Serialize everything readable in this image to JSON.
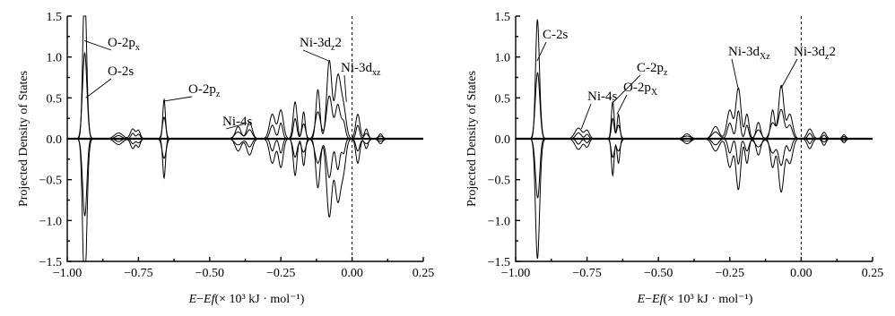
{
  "chart_data": [
    {
      "type": "line",
      "panel": "left",
      "xlabel_prefix": "E−Ef(",
      "xlabel_unit": "× 10³  kJ · mol⁻¹)",
      "ylabel": "Projected Density of States",
      "xlim": [
        -1.0,
        0.25
      ],
      "ylim": [
        -1.5,
        1.5
      ],
      "xticks": [
        "−1.00",
        "−0.75",
        "−0.50",
        "−0.25",
        "0.00",
        "0.25"
      ],
      "yticks": [
        "1.5",
        "1.0",
        "0.5",
        "0.0",
        "−0.5",
        "−1.0",
        "−1.5"
      ],
      "fermi_level": 0.0,
      "annotations": [
        {
          "label": "O-2p",
          "sub": "x",
          "sup": "",
          "x": -0.94,
          "y": 1.2
        },
        {
          "label": "O-2s",
          "sub": "",
          "sup": "",
          "x": -0.935,
          "y": 0.5
        },
        {
          "label": "O-2p",
          "sub": "z",
          "sup": "",
          "x": -0.66,
          "y": 0.48
        },
        {
          "label": "Ni-4s",
          "sub": "",
          "sup": "",
          "x": -0.4,
          "y": 0.12
        },
        {
          "label": "Ni-3d",
          "sub": "z",
          "sup": "2",
          "x": -0.08,
          "y": 0.95
        },
        {
          "label": "Ni-3d",
          "sub": "xz",
          "sup": "",
          "x": -0.02,
          "y": 0.45
        }
      ],
      "peaks": [
        {
          "x": -0.94,
          "y": 1.45,
          "w": 0.006
        },
        {
          "x": -0.935,
          "y": 0.55,
          "w": 0.006
        },
        {
          "x": -0.82,
          "y": 0.07,
          "w": 0.012
        },
        {
          "x": -0.77,
          "y": 0.12,
          "w": 0.008
        },
        {
          "x": -0.75,
          "y": 0.1,
          "w": 0.008
        },
        {
          "x": -0.66,
          "y": 0.48,
          "w": 0.006
        },
        {
          "x": -0.4,
          "y": 0.15,
          "w": 0.01
        },
        {
          "x": -0.36,
          "y": 0.2,
          "w": 0.008
        },
        {
          "x": -0.28,
          "y": 0.3,
          "w": 0.008
        },
        {
          "x": -0.25,
          "y": 0.35,
          "w": 0.008
        },
        {
          "x": -0.2,
          "y": 0.45,
          "w": 0.008
        },
        {
          "x": -0.17,
          "y": 0.33,
          "w": 0.007
        },
        {
          "x": -0.12,
          "y": 0.6,
          "w": 0.008
        },
        {
          "x": -0.08,
          "y": 0.95,
          "w": 0.008
        },
        {
          "x": -0.05,
          "y": 0.75,
          "w": 0.008
        },
        {
          "x": -0.03,
          "y": 0.35,
          "w": 0.008
        },
        {
          "x": 0.02,
          "y": 0.3,
          "w": 0.008
        },
        {
          "x": 0.05,
          "y": 0.12,
          "w": 0.008
        },
        {
          "x": 0.1,
          "y": 0.06,
          "w": 0.008
        }
      ]
    },
    {
      "type": "line",
      "panel": "right",
      "xlabel_prefix": "E−Ef(",
      "xlabel_unit": "× 10³  kJ · mol⁻¹)",
      "ylabel": "Projected Density of States",
      "xlim": [
        -1.0,
        0.25
      ],
      "ylim": [
        -1.5,
        1.5
      ],
      "xticks": [
        "−1.00",
        "−0.75",
        "−0.50",
        "−0.25",
        "0.00",
        "0.25"
      ],
      "yticks": [
        "1.5",
        "1.0",
        "0.5",
        "0.0",
        "−0.5",
        "−1.0",
        "−1.5"
      ],
      "fermi_level": 0.0,
      "annotations": [
        {
          "label": "C-2s",
          "sub": "",
          "sup": "",
          "x": -0.92,
          "y": 0.95
        },
        {
          "label": "Ni-4s",
          "sub": "",
          "sup": "",
          "x": -0.77,
          "y": 0.12
        },
        {
          "label": "C-2p",
          "sub": "z",
          "sup": "",
          "x": -0.66,
          "y": 0.42
        },
        {
          "label": "O-2p",
          "sub": "X",
          "sup": "",
          "x": -0.66,
          "y": 0.3
        },
        {
          "label": "Ni-3d",
          "sub": "Xz",
          "sup": "",
          "x": -0.22,
          "y": 0.6
        },
        {
          "label": "Ni-3d",
          "sub": "z",
          "sup": "2",
          "x": -0.07,
          "y": 0.62
        }
      ],
      "peaks": [
        {
          "x": -0.925,
          "y": 1.0,
          "w": 0.006
        },
        {
          "x": -0.92,
          "y": 0.55,
          "w": 0.006
        },
        {
          "x": -0.78,
          "y": 0.13,
          "w": 0.01
        },
        {
          "x": -0.75,
          "y": 0.1,
          "w": 0.008
        },
        {
          "x": -0.66,
          "y": 0.45,
          "w": 0.006
        },
        {
          "x": -0.64,
          "y": 0.3,
          "w": 0.006
        },
        {
          "x": -0.4,
          "y": 0.06,
          "w": 0.012
        },
        {
          "x": -0.3,
          "y": 0.15,
          "w": 0.01
        },
        {
          "x": -0.25,
          "y": 0.35,
          "w": 0.008
        },
        {
          "x": -0.22,
          "y": 0.62,
          "w": 0.008
        },
        {
          "x": -0.19,
          "y": 0.3,
          "w": 0.008
        },
        {
          "x": -0.15,
          "y": 0.2,
          "w": 0.01
        },
        {
          "x": -0.1,
          "y": 0.35,
          "w": 0.008
        },
        {
          "x": -0.07,
          "y": 0.65,
          "w": 0.008
        },
        {
          "x": -0.04,
          "y": 0.3,
          "w": 0.008
        },
        {
          "x": 0.03,
          "y": 0.12,
          "w": 0.008
        },
        {
          "x": 0.08,
          "y": 0.08,
          "w": 0.008
        },
        {
          "x": 0.15,
          "y": 0.05,
          "w": 0.008
        }
      ]
    }
  ]
}
